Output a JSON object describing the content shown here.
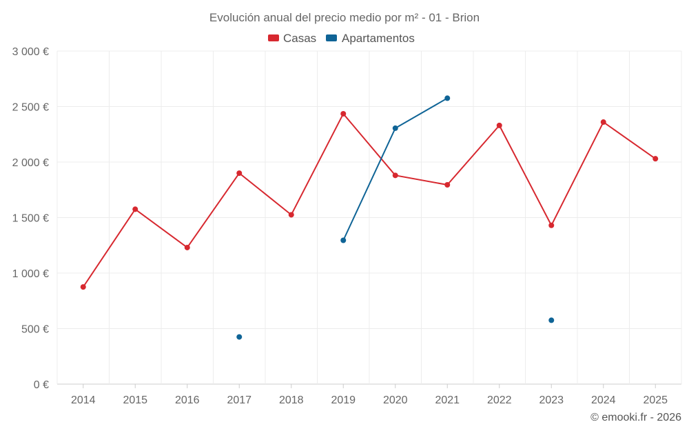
{
  "chart_data": {
    "type": "line",
    "title": "Evolución anual del precio medio por m² - 01 - Brion",
    "categories": [
      "2014",
      "2015",
      "2016",
      "2017",
      "2018",
      "2019",
      "2020",
      "2021",
      "2022",
      "2023",
      "2024",
      "2025"
    ],
    "series": [
      {
        "name": "Casas",
        "color": "#d7282f",
        "values": [
          875,
          1575,
          1230,
          1900,
          1525,
          2435,
          1880,
          1795,
          2330,
          1430,
          2360,
          2030
        ]
      },
      {
        "name": "Apartamentos",
        "color": "#0f6496",
        "values": [
          null,
          null,
          null,
          425,
          null,
          1295,
          2305,
          2575,
          null,
          575,
          null,
          null
        ]
      }
    ],
    "y_ticks": [
      0,
      500,
      1000,
      1500,
      2000,
      2500,
      3000
    ],
    "y_tick_labels": [
      "0 €",
      "500 €",
      "1 000 €",
      "1 500 €",
      "2 000 €",
      "2 500 €",
      "3 000 €"
    ],
    "ylim": [
      0,
      3000
    ],
    "xlabel": "",
    "ylabel": "",
    "grid": true,
    "legend_position": "top-center"
  },
  "credit": "© emooki.fr - 2026"
}
